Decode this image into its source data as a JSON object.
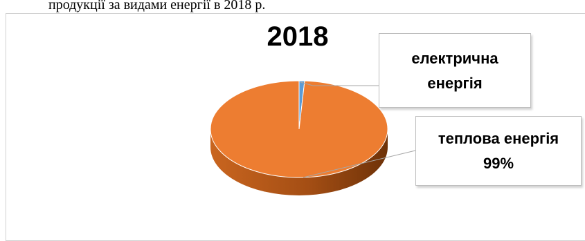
{
  "caption": "продукції за видами енергії в 2018 р.",
  "chart_data": {
    "type": "pie",
    "title": "2018",
    "slices": [
      {
        "label": "електрична енергія",
        "value": 1,
        "value_label": "",
        "color": "#5B9BD5"
      },
      {
        "label": "теплова енергія",
        "value": 99,
        "value_label": "99%",
        "color": "#ED7D31"
      }
    ],
    "style": "3d"
  },
  "callouts": {
    "electric_line1": "електрична",
    "electric_line2": "енергія",
    "thermal_line1": "теплова енергія",
    "thermal_line2": "99%"
  }
}
